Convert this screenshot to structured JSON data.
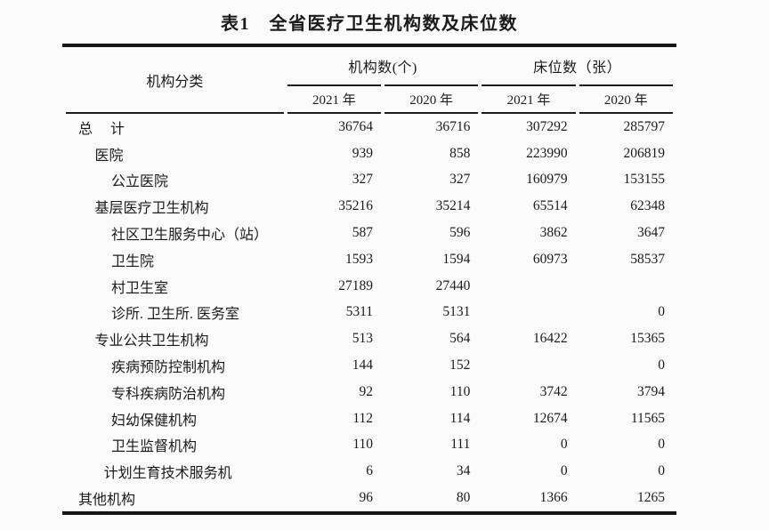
{
  "title": "表1　全省医疗卫生机构数及床位数",
  "table": {
    "category_header": "机构分类",
    "groups": [
      {
        "label": "机构数(个)",
        "sub": [
          "2021 年",
          "2020 年"
        ]
      },
      {
        "label": "床位数（张）",
        "sub": [
          "2021 年",
          "2020 年"
        ]
      }
    ],
    "rows": [
      {
        "label": "总　 计",
        "indent": 0,
        "values": [
          "36764",
          "36716",
          "307292",
          "285797"
        ]
      },
      {
        "label": "医院",
        "indent": 1,
        "values": [
          "939",
          "858",
          "223990",
          "206819"
        ]
      },
      {
        "label": "公立医院",
        "indent": 2,
        "values": [
          "327",
          "327",
          "160979",
          "153155"
        ]
      },
      {
        "label": "基层医疗卫生机构",
        "indent": 1,
        "values": [
          "35216",
          "35214",
          "65514",
          "62348"
        ]
      },
      {
        "label": "社区卫生服务中心（站）",
        "indent": 2,
        "values": [
          "587",
          "596",
          "3862",
          "3647"
        ]
      },
      {
        "label": "卫生院",
        "indent": 2,
        "values": [
          "1593",
          "1594",
          "60973",
          "58537"
        ]
      },
      {
        "label": "村卫生室",
        "indent": 2,
        "values": [
          "27189",
          "27440",
          "",
          ""
        ]
      },
      {
        "label": "诊所. 卫生所. 医务室",
        "indent": 2,
        "values": [
          "5311",
          "5131",
          "",
          "0"
        ]
      },
      {
        "label": "专业公共卫生机构",
        "indent": 1,
        "values": [
          "513",
          "564",
          "16422",
          "15365"
        ]
      },
      {
        "label": "疾病预防控制机构",
        "indent": 2,
        "values": [
          "144",
          "152",
          "",
          "0"
        ]
      },
      {
        "label": "专科疾病防治机构",
        "indent": 2,
        "values": [
          "92",
          "110",
          "3742",
          "3794"
        ]
      },
      {
        "label": "妇幼保健机构",
        "indent": 2,
        "values": [
          "112",
          "114",
          "12674",
          "11565"
        ]
      },
      {
        "label": "卫生监督机构",
        "indent": 2,
        "values": [
          "110",
          "111",
          "0",
          "0"
        ]
      },
      {
        "label": "计划生育技术服务机",
        "indent": 1.55,
        "values": [
          "6",
          "34",
          "0",
          "0"
        ]
      },
      {
        "label": "其他机构",
        "indent": 0,
        "values": [
          "96",
          "80",
          "1366",
          "1265"
        ]
      }
    ]
  }
}
